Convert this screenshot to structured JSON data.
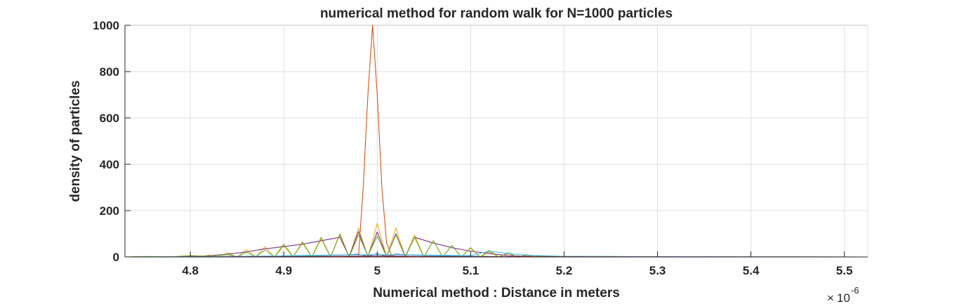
{
  "chart_data": {
    "type": "line",
    "title": "numerical method for random walk for N=1000 particles",
    "xlabel": "Numerical method : Distance in meters",
    "ylabel": "density of particles",
    "x_exponent_label": "10",
    "x_exponent_power": "-6",
    "x_exponent_prefix": "×",
    "x_scale": 1e-06,
    "xlim": [
      4.73,
      5.525
    ],
    "ylim": [
      0,
      1000
    ],
    "xticks": [
      4.8,
      4.9,
      5,
      5.1,
      5.2,
      5.3,
      5.4,
      5.5
    ],
    "xtick_labels": [
      "4.8",
      "4.9",
      "5",
      "5.1",
      "5.2",
      "5.3",
      "5.4",
      "5.5"
    ],
    "yticks": [
      0,
      200,
      400,
      600,
      800,
      1000
    ],
    "ytick_labels": [
      "0",
      "200",
      "400",
      "600",
      "800",
      "1000"
    ],
    "grid": true,
    "series": [
      {
        "color": "#0072BD",
        "x": [
          4.73,
          4.8,
          4.86,
          4.88,
          4.9,
          4.92,
          4.94,
          4.96,
          4.98,
          4.99,
          5.0,
          5.01,
          5.02,
          5.04,
          5.06,
          5.08,
          5.1,
          5.12,
          5.14,
          5.16,
          5.2,
          5.3,
          5.525
        ],
        "y": [
          0,
          0,
          1,
          2,
          3,
          4,
          6,
          8,
          12,
          3,
          14,
          3,
          12,
          8,
          6,
          4,
          3,
          2,
          1,
          0,
          0,
          0,
          0
        ]
      },
      {
        "color": "#D95319",
        "x": [
          4.73,
          4.96,
          4.98,
          4.985,
          4.99,
          4.995,
          5.0,
          5.005,
          5.01,
          5.015,
          5.02,
          5.04,
          5.525
        ],
        "y": [
          0,
          0,
          2,
          300,
          700,
          1000,
          700,
          300,
          60,
          10,
          2,
          0,
          0
        ]
      },
      {
        "color": "#EDB120",
        "x": [
          4.73,
          4.76,
          4.78,
          4.8,
          4.81,
          4.82,
          4.83,
          4.84,
          4.85,
          4.86,
          4.87,
          4.88,
          4.89,
          4.9,
          4.91,
          4.92,
          4.93,
          4.94,
          4.95,
          4.96,
          4.97,
          4.98,
          4.99,
          5.0,
          5.01,
          5.02,
          5.03,
          5.04,
          5.05,
          5.06,
          5.07,
          5.08,
          5.09,
          5.1,
          5.11,
          5.12,
          5.13,
          5.14,
          5.15,
          5.16,
          5.17,
          5.18,
          5.19,
          5.2,
          5.22,
          5.25,
          5.525
        ],
        "y": [
          0,
          1,
          0,
          3,
          0,
          8,
          0,
          18,
          0,
          32,
          0,
          45,
          0,
          48,
          0,
          60,
          0,
          78,
          0,
          95,
          0,
          125,
          0,
          145,
          0,
          125,
          0,
          95,
          0,
          70,
          0,
          50,
          0,
          38,
          0,
          22,
          0,
          14,
          0,
          7,
          0,
          3,
          0,
          2,
          1,
          0,
          0
        ]
      },
      {
        "color": "#7E2F8E",
        "x": [
          4.73,
          4.8,
          4.82,
          4.84,
          4.86,
          4.88,
          4.9,
          4.92,
          4.94,
          4.96,
          4.97,
          4.98,
          4.99,
          5.0,
          5.01,
          5.02,
          5.03,
          5.04,
          5.06,
          5.08,
          5.1,
          5.12,
          5.14,
          5.16,
          5.2,
          5.525
        ],
        "y": [
          0,
          2,
          5,
          12,
          22,
          35,
          45,
          55,
          70,
          85,
          2,
          110,
          2,
          108,
          2,
          100,
          2,
          85,
          60,
          40,
          25,
          15,
          6,
          3,
          1,
          0
        ]
      },
      {
        "color": "#77AC30",
        "x": [
          4.73,
          4.75,
          4.78,
          4.8,
          4.82,
          4.84,
          4.85,
          4.86,
          4.87,
          4.88,
          4.89,
          4.9,
          4.91,
          4.92,
          4.93,
          4.94,
          4.95,
          4.96,
          4.97,
          4.98,
          4.99,
          5.0,
          5.01,
          5.02,
          5.03,
          5.04,
          5.05,
          5.06,
          5.07,
          5.08,
          5.09,
          5.1,
          5.11,
          5.12,
          5.13,
          5.14,
          5.15,
          5.16,
          5.17,
          5.18,
          5.19,
          5.2,
          5.21,
          5.25,
          5.3,
          5.525
        ],
        "y": [
          0,
          2,
          1,
          6,
          3,
          10,
          1,
          20,
          2,
          30,
          1,
          55,
          0,
          65,
          0,
          85,
          0,
          100,
          0,
          95,
          5,
          90,
          2,
          95,
          0,
          85,
          0,
          70,
          0,
          50,
          0,
          40,
          0,
          28,
          0,
          18,
          0,
          10,
          0,
          5,
          0,
          3,
          2,
          2,
          0,
          0
        ]
      },
      {
        "color": "#4DBEEE",
        "x": [
          4.73,
          4.8,
          4.85,
          4.9,
          4.95,
          5.0,
          5.05,
          5.1,
          5.12,
          5.14,
          5.16,
          5.2,
          5.3,
          5.525
        ],
        "y": [
          0,
          1,
          3,
          5,
          8,
          10,
          8,
          6,
          25,
          15,
          8,
          3,
          1,
          0
        ]
      },
      {
        "color": "#A2142F",
        "x": [
          4.73,
          4.9,
          4.95,
          5.0,
          5.05,
          5.1,
          5.525
        ],
        "y": [
          0,
          1,
          2,
          4,
          2,
          1,
          0
        ]
      }
    ]
  }
}
